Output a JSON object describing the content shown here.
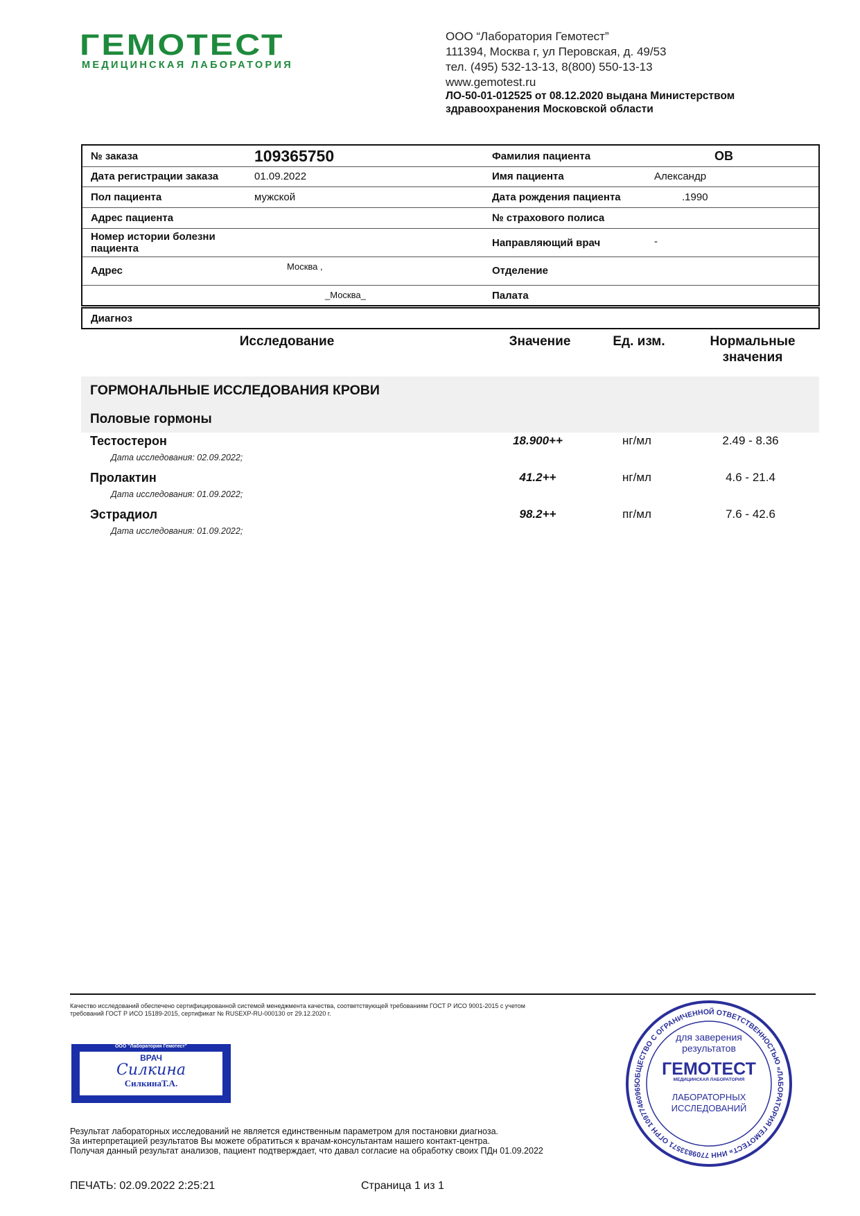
{
  "logo": {
    "name": "ГЕМОТЕСТ",
    "tagline": "МЕДИЦИНСКАЯ ЛАБОРАТОРИЯ",
    "color": "#1e8a3c"
  },
  "organization": {
    "name": "ООО “Лаборатория Гемотест”",
    "address": "111394, Москва г, ул Перовская, д. 49/53",
    "phone": "тел. (495) 532-13-13, 8(800) 550-13-13",
    "website": "www.gemotest.ru",
    "license_line1": "ЛО-50-01-012525 от 08.12.2020 выдана Министерством",
    "license_line2": "здравоохранения Московской области"
  },
  "patient_info": {
    "order_label": "№ заказа",
    "order_value": "109365750",
    "reg_date_label": "Дата регистрации заказа",
    "reg_date_value": "01.09.2022",
    "sex_label": "Пол пациента",
    "sex_value": "мужской",
    "patient_address_label": "Адрес пациента",
    "history_label": "Номер истории болезни пациента",
    "address_label": "Адрес",
    "address_value_1": "Москва ,",
    "address_value_2": "_Москва_",
    "surname_label": "Фамилия пациента",
    "surname_value": "ов",
    "name_label": "Имя пациента",
    "name_value": "Александр",
    "dob_label": "Дата рождения пациента",
    "dob_value": ".1990",
    "policy_label": "№ страхового полиса",
    "doctor_label": "Направляющий врач",
    "doctor_value": "-",
    "department_label": "Отделение",
    "ward_label": "Палата",
    "diagnosis_label": "Диагноз"
  },
  "results_table": {
    "headers": {
      "test": "Исследование",
      "value": "Значение",
      "unit": "Ед. изм.",
      "norm_line1": "Нормальные",
      "norm_line2": "значения"
    },
    "section": "ГОРМОНАЛЬНЫЕ ИССЛЕДОВАНИЯ КРОВИ",
    "subsection": "Половые гормоны",
    "rows": [
      {
        "name": "Тестостерон",
        "date": "Дата исследования: 02.09.2022;",
        "value": "18.900++",
        "unit": "нг/мл",
        "norm": "2.49 - 8.36"
      },
      {
        "name": "Пролактин",
        "date": "Дата исследования: 01.09.2022;",
        "value": "41.2++",
        "unit": "нг/мл",
        "norm": "4.6 - 21.4"
      },
      {
        "name": "Эстрадиол",
        "date": "Дата исследования: 01.09.2022;",
        "value": "98.2++",
        "unit": "пг/мл",
        "norm": "7.6 - 42.6"
      }
    ]
  },
  "footer": {
    "quality_line1": "Качество исследований обеспечено сертифицированной системой менеджмента качества, соответствующей требованиям ГОСТ Р ИСО 9001-2015 с учетом",
    "quality_line2": "требований ГОСТ Р ИСО 15189-2015, сертификат № RUSEXP-RU-000130 от 29.12.2020 г.",
    "doctor_stamp": {
      "org": "ООО \"Лаборатория Гемотест\"",
      "title": "ВРАЧ",
      "signature": "Силкина",
      "name": "СилкинаТ.А.",
      "color": "#1a2fa8"
    },
    "disclaimer_line1": "Результат лабораторных исследований не является единственным параметром для постановки диагноза.",
    "disclaimer_line2": "За интерпретацией результатов Вы можете обратиться к врачам-консультантам нашего контакт-центра.",
    "disclaimer_line3": "Получая данный результат анализов, пациент подтверждает, что давал согласие на обработку своих ПДн 01.09.2022",
    "round_stamp": {
      "ring_text": "ОБЩЕСТВО С ОГРАНИЧЕННОЙ ОТВЕТСТВЕННОСТЬЮ «ЛАБОРАТОРИЯ ГЕМОТЕСТ» ИНН 7709833571 ОГРН 1097746096542 • МОСКВА •",
      "top": "для заверения результатов",
      "brand": "ГЕМОТЕСТ",
      "brand_sub": "МЕДИЦИНСКАЯ ЛАБОРАТОРИЯ",
      "bottom": "ЛАБОРАТОРНЫХ ИССЛЕДОВАНИЙ",
      "color": "#2a2f9a"
    },
    "print_label": "ПЕЧАТЬ: 02.09.2022 2:25:21",
    "page_label": "Страница 1 из 1"
  }
}
